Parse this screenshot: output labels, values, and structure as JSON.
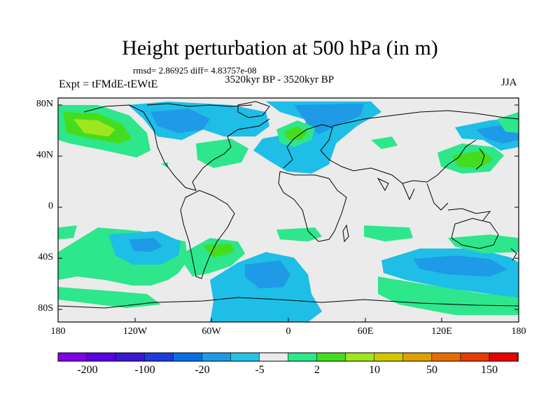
{
  "header": {
    "title": "Height perturbation at 500 hPa (in m)",
    "stats": "rmsd= 2.86925  diff= 4.83757e-08",
    "experiment": "Expt = tFMdE-tEWtE",
    "period": "3520kyr BP - 3520kyr BP",
    "season": "JJA"
  },
  "axes": {
    "y_ticks": [
      "80N",
      "40N",
      "0",
      "40S",
      "80S"
    ],
    "x_ticks": [
      "180",
      "120W",
      "60W",
      "0",
      "60E",
      "120E",
      "180"
    ]
  },
  "colorbar": {
    "colors": [
      "#7d00e6",
      "#5a00e6",
      "#3c18d0",
      "#1e3cdc",
      "#0a6ee6",
      "#1e9ae6",
      "#28c0e6",
      "#ebebeb",
      "#2ee68c",
      "#46dc1e",
      "#a0e61e",
      "#d2c800",
      "#dca000",
      "#e66e00",
      "#e63c00",
      "#e60000"
    ],
    "labels": [
      "-200",
      "-100",
      "-20",
      "-5",
      "2",
      "10",
      "50",
      "150"
    ]
  },
  "palette": {
    "background": "#ebebeb",
    "blue_light": "#1ebee6",
    "blue_mid": "#1e9ae6",
    "blue_dark": "#0a6ee6",
    "green": "#2ee68c",
    "green_dark": "#46dc1e",
    "yellow_green": "#a0e61e",
    "coast": "#000000"
  }
}
